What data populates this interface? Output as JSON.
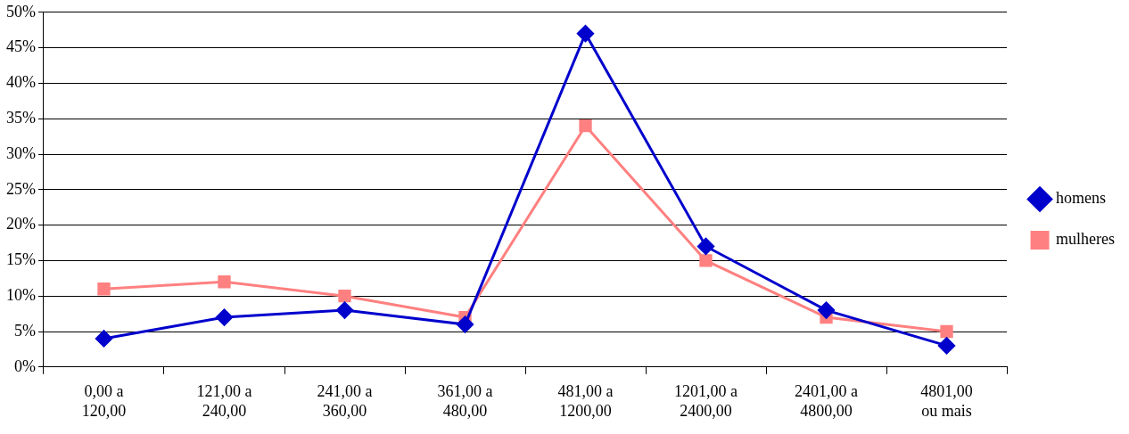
{
  "chart_data": {
    "type": "line",
    "categories": [
      "0,00 a\n120,00",
      "121,00 a\n240,00",
      "241,00 a\n360,00",
      "361,00 a\n480,00",
      "481,00 a\n1200,00",
      "1201,00 a\n2400,00",
      "2401,00 a\n4800,00",
      "4801,00\nou mais"
    ],
    "series": [
      {
        "name": "homens",
        "color": "#0000cc",
        "marker": "diamond",
        "values": [
          4,
          7,
          8,
          6,
          47,
          17,
          8,
          3
        ]
      },
      {
        "name": "mulheres",
        "color": "#ff8080",
        "marker": "square",
        "values": [
          11,
          12,
          10,
          7,
          34,
          15,
          7,
          5
        ]
      }
    ],
    "ylim": [
      0,
      50
    ],
    "yticks": [
      {
        "value": 0,
        "label": "0%"
      },
      {
        "value": 5,
        "label": "5%"
      },
      {
        "value": 10,
        "label": "10%"
      },
      {
        "value": 15,
        "label": "15%"
      },
      {
        "value": 20,
        "label": "20%"
      },
      {
        "value": 25,
        "label": "25%"
      },
      {
        "value": 30,
        "label": "30%"
      },
      {
        "value": 35,
        "label": "35%"
      },
      {
        "value": 40,
        "label": "40%"
      },
      {
        "value": 45,
        "label": "45%"
      },
      {
        "value": 50,
        "label": "50%"
      }
    ],
    "grid": true,
    "legend": "right"
  }
}
